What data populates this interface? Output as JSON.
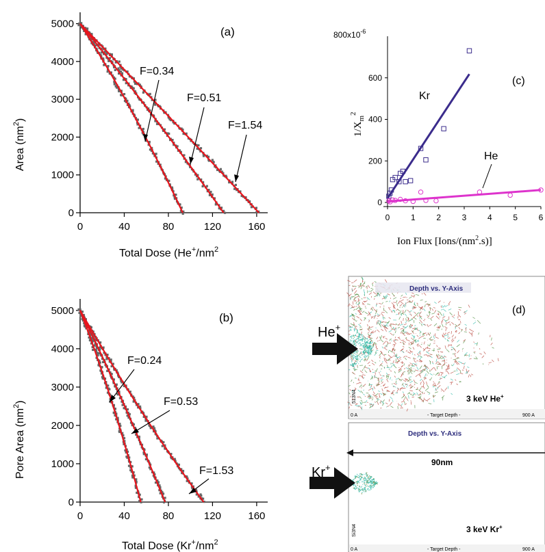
{
  "chart_data": [
    {
      "type": "scatter",
      "panel": "(a)",
      "xlabel": "Total Dose (He",
      "xlabel_sup": "+",
      "xlabel_tail": "/nm",
      "xlabel_sup2": "2",
      "ylabel": "Area (nm",
      "ylabel_sup": "2",
      "ylabel_tail": ")",
      "xlim": [
        0,
        170
      ],
      "ylim": [
        0,
        5300
      ],
      "xticks": [
        0,
        40,
        80,
        120,
        160
      ],
      "yticks": [
        0,
        1000,
        2000,
        3000,
        4000,
        5000
      ],
      "color_points": "#666666",
      "color_fit": "#e8141c",
      "series": [
        {
          "name": "F=0.34",
          "x0": 0,
          "y0": 5000,
          "x1": 93,
          "y1": 0,
          "curv": 0.16
        },
        {
          "name": "F=0.51",
          "x0": 0,
          "y0": 5000,
          "x1": 130,
          "y1": 0,
          "curv": 0.08
        },
        {
          "name": "F=1.54",
          "x0": 0,
          "y0": 5000,
          "x1": 162,
          "y1": 0,
          "curv": 0.02
        }
      ]
    },
    {
      "type": "scatter",
      "panel": "(b)",
      "xlabel": "Total Dose (Kr",
      "xlabel_sup": "+",
      "xlabel_tail": "/nm",
      "xlabel_sup2": "2",
      "ylabel": "Pore Area (nm",
      "ylabel_sup": "2",
      "ylabel_tail": ")",
      "xlim": [
        0,
        170
      ],
      "ylim": [
        0,
        5300
      ],
      "xticks": [
        0,
        40,
        80,
        120,
        160
      ],
      "yticks": [
        0,
        1000,
        2000,
        3000,
        4000,
        5000
      ],
      "color_points": "#666666",
      "color_fit": "#e8141c",
      "series": [
        {
          "name": "F=0.24",
          "x0": 0,
          "y0": 5000,
          "x1": 55,
          "y1": 0,
          "curv": 0.18
        },
        {
          "name": "F=0.53",
          "x0": 0,
          "y0": 5000,
          "x1": 77,
          "y1": 0,
          "curv": 0.1
        },
        {
          "name": "F=1.53",
          "x0": 0,
          "y0": 5000,
          "x1": 112,
          "y1": 0,
          "curv": -0.12
        }
      ]
    },
    {
      "type": "scatter",
      "panel": "(c)",
      "xlabel": "Ion Flux [Ions/(nm",
      "xlabel_sup": "2",
      "xlabel_tail": ".s)]",
      "ylabel": "1/X",
      "ylabel_sub": "m",
      "ylabel_sup": "2",
      "ytop_label": "800x10",
      "ytop_exp": "-6",
      "xlim": [
        0,
        6
      ],
      "ylim": [
        0,
        800
      ],
      "xticks": [
        0,
        1,
        2,
        3,
        4,
        5,
        6
      ],
      "xtick_labels": [
        "0",
        "1",
        "2",
        "3",
        "4",
        "5",
        "6"
      ],
      "yticks": [
        0,
        200,
        400,
        600
      ],
      "series": [
        {
          "name": "Kr",
          "color": "#3b2c8c",
          "marker": "square",
          "x": [
            0.05,
            0.1,
            0.15,
            0.2,
            0.3,
            0.45,
            0.5,
            0.6,
            0.7,
            0.9,
            1.3,
            1.5,
            2.2,
            3.2
          ],
          "y": [
            30,
            45,
            60,
            110,
            120,
            100,
            140,
            150,
            100,
            105,
            260,
            205,
            355,
            730
          ],
          "fit": {
            "x": [
              0.0,
              3.2
            ],
            "y": [
              20,
              618
            ]
          }
        },
        {
          "name": "He",
          "color": "#dd33cc",
          "marker": "circle",
          "x": [
            0.05,
            0.1,
            0.2,
            0.3,
            0.5,
            0.7,
            1.0,
            1.3,
            1.5,
            1.9,
            3.6,
            4.8,
            6.0
          ],
          "y": [
            8,
            3,
            12,
            10,
            15,
            8,
            5,
            50,
            10,
            8,
            50,
            35,
            60
          ],
          "fit": {
            "x": [
              0.0,
              6.0
            ],
            "y": [
              5,
              60
            ]
          }
        }
      ]
    }
  ],
  "panel_d": {
    "label": "(d)",
    "top": {
      "title": "Depth vs. Y-Axis",
      "ion": "He",
      "ion_sup": "+",
      "caption": "3 keV He",
      "caption_sup": "+",
      "left_axis": "0 A",
      "center_axis": "- Target Depth -",
      "right_axis": "900 A",
      "side_label": "513N4"
    },
    "bottom": {
      "title": "Depth vs. Y-Axis",
      "ion": "Kr",
      "ion_sup": "+",
      "scale_text": "90nm",
      "caption": "3 keV Kr",
      "caption_sup": "+",
      "left_axis": "0 A",
      "center_axis": "- Target Depth -",
      "right_axis": "900 A",
      "side_label": "Si3N4"
    },
    "colors": {
      "he_cloud": "#b8453a",
      "he_cloud2": "#4a8a3a",
      "cyan": "#33bbaa",
      "title": "#2c2c7c",
      "arrow": "#111111"
    }
  }
}
